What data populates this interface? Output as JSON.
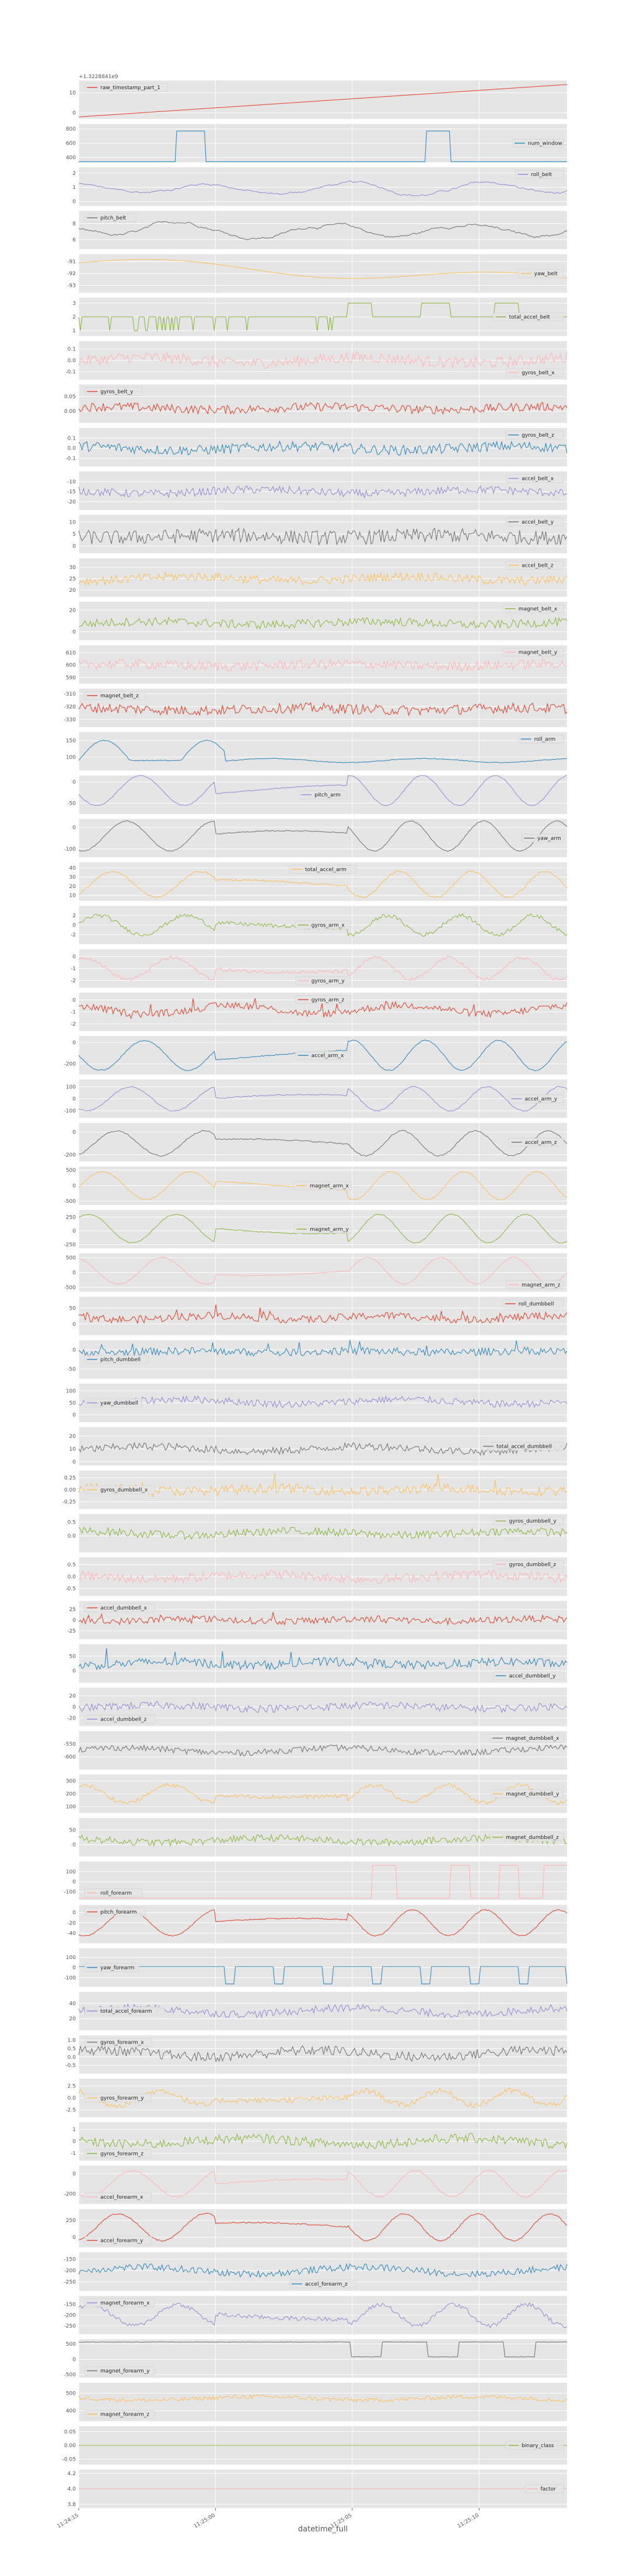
{
  "chart_data": {
    "type": "line",
    "layout": "stacked-subplots-shared-x",
    "xlabel": "datetime_full",
    "x_ticks": [
      "11:24:15",
      "11:25:00",
      "11:25:05",
      "11:25:10"
    ],
    "x_tick_positions": [
      0.0,
      0.28,
      0.56,
      0.82
    ],
    "grid": true,
    "legend_placement": "right",
    "background": "#E5E5E5",
    "colors": [
      "#E24A33",
      "#348ABD",
      "#988ED5",
      "#777777",
      "#FBC15E",
      "#8EBA42",
      "#FFB5B8"
    ],
    "subplots": [
      {
        "series": "raw_timestamp_part_1",
        "legend_pos": "top-left",
        "offset_text": "+1.3228841e9",
        "yticks": [
          "10",
          "0"
        ],
        "ylim": [
          -3,
          16
        ],
        "shape": "ramp",
        "base": -2,
        "amp": 16,
        "noise": 0.02
      },
      {
        "series": "num_window",
        "legend_pos": "right",
        "yticks": [
          "800",
          "600",
          "400"
        ],
        "ylim": [
          330,
          870
        ],
        "shape": "window",
        "base": 340,
        "amp": 430,
        "noise": 0
      },
      {
        "series": "roll_belt",
        "legend_pos": "top-right",
        "yticks": [
          "2",
          "1",
          "0"
        ],
        "ylim": [
          -0.3,
          2.4
        ],
        "shape": "smooth",
        "base": 0.9,
        "amp": 0.6,
        "noise": 0.05
      },
      {
        "series": "pitch_belt",
        "legend_pos": "top-left",
        "yticks": [
          "8",
          "6"
        ],
        "ylim": [
          4.8,
          9.6
        ],
        "shape": "smooth",
        "base": 7.2,
        "amp": 1.3,
        "noise": 0.08
      },
      {
        "series": "yaw_belt",
        "legend_pos": "right",
        "yticks": [
          "-91",
          "-92",
          "-93"
        ],
        "ylim": [
          -93.6,
          -90.4
        ],
        "shape": "decline",
        "base": -92,
        "amp": 1.0,
        "noise": 0.06
      },
      {
        "series": "total_accel_belt",
        "legend_pos": "right",
        "yticks": [
          "3",
          "2",
          "1"
        ],
        "ylim": [
          0.6,
          3.4
        ],
        "shape": "step",
        "base": 2,
        "amp": 1,
        "noise": 0
      },
      {
        "series": "gyros_belt_x",
        "legend_pos": "bottom-right",
        "yticks": [
          "0.1",
          "0.0",
          "-0.1"
        ],
        "ylim": [
          -0.17,
          0.17
        ],
        "shape": "noisy",
        "base": 0,
        "amp": 0.05,
        "noise": 0.05
      },
      {
        "series": "gyros_belt_y",
        "legend_pos": "top-left",
        "yticks": [
          "0.05",
          "0.00"
        ],
        "ylim": [
          -0.04,
          0.09
        ],
        "shape": "noisy",
        "base": 0.01,
        "amp": 0.01,
        "noise": 0.015
      },
      {
        "series": "gyros_belt_z",
        "legend_pos": "top-right",
        "yticks": [
          "0.1",
          "0.0",
          "-0.1"
        ],
        "ylim": [
          -0.18,
          0.2
        ],
        "shape": "noisy",
        "base": 0,
        "amp": 0.04,
        "noise": 0.05
      },
      {
        "series": "accel_belt_x",
        "legend_pos": "top-right",
        "yticks": [
          "-10",
          "-15",
          "-20"
        ],
        "ylim": [
          -24,
          -5
        ],
        "shape": "noisy",
        "base": -15,
        "amp": 2,
        "noise": 2
      },
      {
        "series": "accel_belt_y",
        "legend_pos": "top-right",
        "yticks": [
          "10",
          "5",
          "0"
        ],
        "ylim": [
          -3,
          13
        ],
        "shape": "noisy",
        "base": 4,
        "amp": 1,
        "noise": 3
      },
      {
        "series": "accel_belt_z",
        "legend_pos": "top-right",
        "yticks": [
          "30",
          "25",
          "20"
        ],
        "ylim": [
          17,
          34
        ],
        "shape": "noisy",
        "base": 25,
        "amp": 2,
        "noise": 2
      },
      {
        "series": "magnet_belt_x",
        "legend_pos": "top-right",
        "yticks": [
          "20",
          "0"
        ],
        "ylim": [
          -8,
          28
        ],
        "shape": "noisy",
        "base": 8,
        "amp": 3,
        "noise": 4
      },
      {
        "series": "magnet_belt_y",
        "legend_pos": "top-right",
        "yticks": [
          "610",
          "600",
          "590"
        ],
        "ylim": [
          585,
          616
        ],
        "shape": "noisy",
        "base": 600,
        "amp": 2,
        "noise": 4
      },
      {
        "series": "magnet_belt_z",
        "legend_pos": "top-left",
        "yticks": [
          "-310",
          "-320",
          "-330"
        ],
        "ylim": [
          -336,
          -306
        ],
        "shape": "noisy",
        "base": -322,
        "amp": 2,
        "noise": 4
      },
      {
        "series": "roll_arm",
        "legend_pos": "top-right",
        "yticks": [
          "150",
          "100"
        ],
        "ylim": [
          60,
          175
        ],
        "shape": "roll_arm",
        "base": 90,
        "amp": 60,
        "noise": 1
      },
      {
        "series": "pitch_arm",
        "legend_pos": "center",
        "yticks": [
          "0",
          "-50"
        ],
        "ylim": [
          -75,
          15
        ],
        "shape": "waves",
        "base": -20,
        "amp": 35,
        "noise": 1
      },
      {
        "series": "yaw_arm",
        "legend_pos": "right",
        "yticks": [
          "0",
          "-100"
        ],
        "ylim": [
          -140,
          40
        ],
        "shape": "waves",
        "base": -40,
        "amp": 70,
        "noise": 2
      },
      {
        "series": "total_accel_arm",
        "legend_pos": "top-center",
        "yticks": [
          "40",
          "30",
          "20",
          "10"
        ],
        "ylim": [
          4,
          46
        ],
        "shape": "waves",
        "base": 22,
        "amp": 14,
        "noise": 1
      },
      {
        "series": "gyros_arm_x",
        "legend_pos": "center",
        "yticks": [
          "2",
          "0",
          "-2"
        ],
        "ylim": [
          -4,
          4
        ],
        "shape": "waves",
        "base": 0,
        "amp": 2,
        "noise": 0.4
      },
      {
        "series": "gyros_arm_y",
        "legend_pos": "bottom-center",
        "yticks": [
          "0",
          "-1",
          "-2"
        ],
        "ylim": [
          -2.6,
          0.6
        ],
        "shape": "waves",
        "base": -1,
        "amp": 0.9,
        "noise": 0.15
      },
      {
        "series": "gyros_arm_z",
        "legend_pos": "top-center",
        "yticks": [
          "0",
          "-1",
          "-2"
        ],
        "ylim": [
          -2.6,
          0.6
        ],
        "shape": "spiky",
        "base": -0.8,
        "amp": 0.9,
        "noise": 0.3
      },
      {
        "series": "accel_arm_x",
        "legend_pos": "center",
        "yticks": [
          "0",
          "-200"
        ],
        "ylim": [
          -300,
          60
        ],
        "shape": "waves",
        "base": -120,
        "amp": 140,
        "noise": 5
      },
      {
        "series": "accel_arm_y",
        "legend_pos": "right",
        "yticks": [
          "100",
          "0",
          "-100"
        ],
        "ylim": [
          -160,
          160
        ],
        "shape": "waves",
        "base": 0,
        "amp": 100,
        "noise": 5
      },
      {
        "series": "accel_arm_z",
        "legend_pos": "right",
        "yticks": [
          "0",
          "-200"
        ],
        "ylim": [
          -260,
          80
        ],
        "shape": "waves",
        "base": -100,
        "amp": 110,
        "noise": 6
      },
      {
        "series": "magnet_arm_x",
        "legend_pos": "center",
        "yticks": [
          "500",
          "0",
          "-500"
        ],
        "ylim": [
          -620,
          620
        ],
        "shape": "waves",
        "base": 0,
        "amp": 450,
        "noise": 10
      },
      {
        "series": "magnet_arm_y",
        "legend_pos": "center",
        "yticks": [
          "250",
          "0",
          "-250"
        ],
        "ylim": [
          -320,
          380
        ],
        "shape": "waves",
        "base": 40,
        "amp": 260,
        "noise": 8
      },
      {
        "series": "magnet_arm_z",
        "legend_pos": "bottom-right",
        "yticks": [
          "500",
          "0",
          "-500"
        ],
        "ylim": [
          -650,
          650
        ],
        "shape": "waves",
        "base": 60,
        "amp": 450,
        "noise": 10
      },
      {
        "series": "roll_dumbbell",
        "legend_pos": "top-right",
        "yticks": [
          "50",
          "0"
        ],
        "ylim": [
          -35,
          85
        ],
        "shape": "spiky",
        "base": 20,
        "amp": 15,
        "noise": 12
      },
      {
        "series": "pitch_dumbbell",
        "legend_pos": "left",
        "yticks": [
          "0",
          "-50"
        ],
        "ylim": [
          -75,
          25
        ],
        "shape": "spiky",
        "base": -5,
        "amp": 5,
        "noise": 10
      },
      {
        "series": "yaw_dumbbell",
        "legend_pos": "left",
        "yticks": [
          "100",
          "50",
          "0"
        ],
        "ylim": [
          -30,
          130
        ],
        "shape": "noisy",
        "base": 55,
        "amp": 20,
        "noise": 15
      },
      {
        "series": "total_accel_dumbbell",
        "legend_pos": "right",
        "yticks": [
          "20",
          "10",
          "0"
        ],
        "ylim": [
          -3,
          27
        ],
        "shape": "noisy",
        "base": 10,
        "amp": 4,
        "noise": 3
      },
      {
        "series": "gyros_dumbbell_x",
        "legend_pos": "left",
        "yticks": [
          "0.25",
          "0.00",
          "-0.25"
        ],
        "ylim": [
          -0.4,
          0.4
        ],
        "shape": "spiky",
        "base": 0,
        "amp": 0.08,
        "noise": 0.1
      },
      {
        "series": "gyros_dumbbell_y",
        "legend_pos": "top-right",
        "yticks": [
          "0.5",
          "0.0"
        ],
        "ylim": [
          -0.6,
          0.8
        ],
        "shape": "noisy",
        "base": 0.1,
        "amp": 0.15,
        "noise": 0.15
      },
      {
        "series": "gyros_dumbbell_z",
        "legend_pos": "top-right",
        "yticks": [
          "0.5",
          "0.0",
          "-0.5"
        ],
        "ylim": [
          -0.8,
          0.8
        ],
        "shape": "noisy",
        "base": 0,
        "amp": 0.2,
        "noise": 0.2
      },
      {
        "series": "accel_dumbbell_x",
        "legend_pos": "top-left",
        "yticks": [
          "25",
          "0",
          "-25"
        ],
        "ylim": [
          -45,
          45
        ],
        "shape": "spiky",
        "base": 0,
        "amp": 8,
        "noise": 8
      },
      {
        "series": "accel_dumbbell_y",
        "legend_pos": "bottom-right",
        "yticks": [
          "50",
          "0"
        ],
        "ylim": [
          -40,
          90
        ],
        "shape": "spiky",
        "base": 25,
        "amp": 15,
        "noise": 15
      },
      {
        "series": "accel_dumbbell_z",
        "legend_pos": "bottom-left",
        "yticks": [
          "20",
          "0",
          "-20"
        ],
        "ylim": [
          -35,
          35
        ],
        "shape": "noisy",
        "base": 0,
        "amp": 6,
        "noise": 7
      },
      {
        "series": "magnet_dumbbell_x",
        "legend_pos": "top-right",
        "yticks": [
          "-550",
          "-600"
        ],
        "ylim": [
          -650,
          -500
        ],
        "shape": "noisy",
        "base": -575,
        "amp": 20,
        "noise": 12
      },
      {
        "series": "magnet_dumbbell_y",
        "legend_pos": "right",
        "yticks": [
          "300",
          "200",
          "100"
        ],
        "ylim": [
          50,
          350
        ],
        "shape": "waves",
        "base": 200,
        "amp": 70,
        "noise": 15
      },
      {
        "series": "magnet_dumbbell_z",
        "legend_pos": "right",
        "yticks": [
          "50",
          "0"
        ],
        "ylim": [
          -40,
          90
        ],
        "shape": "noisy",
        "base": 15,
        "amp": 15,
        "noise": 12
      },
      {
        "series": "roll_forearm",
        "legend_pos": "bottom-left",
        "yticks": [
          "100",
          "0",
          "-100"
        ],
        "ylim": [
          -180,
          200
        ],
        "shape": "roll_forearm",
        "base": 0,
        "amp": 170,
        "noise": 0
      },
      {
        "series": "pitch_forearm",
        "legend_pos": "top-left",
        "yticks": [
          "0",
          "-20",
          "-40"
        ],
        "ylim": [
          -60,
          15
        ],
        "shape": "waves",
        "base": -20,
        "amp": 25,
        "noise": 1
      },
      {
        "series": "yaw_forearm",
        "legend_pos": "left",
        "yticks": [
          "100",
          "0",
          "-100"
        ],
        "ylim": [
          -190,
          190
        ],
        "shape": "yaw_forearm",
        "base": 0,
        "amp": 170,
        "noise": 0
      },
      {
        "series": "total_accel_forearm",
        "legend_pos": "left",
        "yticks": [
          "40",
          "20"
        ],
        "ylim": [
          5,
          55
        ],
        "shape": "noisy",
        "base": 30,
        "amp": 8,
        "noise": 5
      },
      {
        "series": "gyros_forearm_x",
        "legend_pos": "top-left",
        "yticks": [
          "1.0",
          "0.5",
          "0.0",
          "-0.5"
        ],
        "ylim": [
          -1,
          1.3
        ],
        "shape": "noisy",
        "base": 0.2,
        "amp": 0.4,
        "noise": 0.3
      },
      {
        "series": "gyros_forearm_y",
        "legend_pos": "left",
        "yticks": [
          "2.5",
          "0.0",
          "-2.5"
        ],
        "ylim": [
          -4,
          4
        ],
        "shape": "waves",
        "base": 0,
        "amp": 1.5,
        "noise": 0.6
      },
      {
        "series": "gyros_forearm_z",
        "legend_pos": "bottom-left",
        "yticks": [
          "1",
          "0",
          "-1"
        ],
        "ylim": [
          -1.6,
          1.6
        ],
        "shape": "noisy",
        "base": 0,
        "amp": 0.5,
        "noise": 0.4
      },
      {
        "series": "accel_forearm_x",
        "legend_pos": "bottom-left",
        "yticks": [
          "0",
          "-200"
        ],
        "ylim": [
          -300,
          80
        ],
        "shape": "waves",
        "base": -100,
        "amp": 130,
        "noise": 8
      },
      {
        "series": "accel_forearm_y",
        "legend_pos": "bottom-left",
        "yticks": [
          "250",
          "0"
        ],
        "ylim": [
          -150,
          420
        ],
        "shape": "waves",
        "base": 150,
        "amp": 200,
        "noise": 10
      },
      {
        "series": "accel_forearm_z",
        "legend_pos": "bottom-center",
        "yticks": [
          "-150",
          "-200",
          "-250"
        ],
        "ylim": [
          -290,
          -120
        ],
        "shape": "noisy",
        "base": -200,
        "amp": 30,
        "noise": 15
      },
      {
        "series": "magnet_forearm_x",
        "legend_pos": "top-left",
        "yticks": [
          "-150",
          "-200",
          "-250"
        ],
        "ylim": [
          -290,
          -110
        ],
        "shape": "waves",
        "base": -200,
        "amp": 50,
        "noise": 10
      },
      {
        "series": "magnet_forearm_y",
        "legend_pos": "bottom-left",
        "yticks": [
          "500",
          "0",
          "-500"
        ],
        "ylim": [
          -600,
          650
        ],
        "shape": "magnet_forearm_y",
        "base": 200,
        "amp": 400,
        "noise": 8
      },
      {
        "series": "magnet_forearm_z",
        "legend_pos": "bottom-left",
        "yticks": [
          "500",
          "400"
        ],
        "ylim": [
          340,
          560
        ],
        "shape": "noisy",
        "base": 470,
        "amp": 20,
        "noise": 12
      },
      {
        "series": "binary_class",
        "legend_pos": "right",
        "yticks": [
          "0.05",
          "0.00",
          "-0.05"
        ],
        "ylim": [
          -0.07,
          0.07
        ],
        "shape": "flat",
        "base": 0,
        "amp": 0,
        "noise": 0
      },
      {
        "series": "factor",
        "legend_pos": "right",
        "yticks": [
          "4.2",
          "4.0",
          "3.8"
        ],
        "ylim": [
          3.75,
          4.25
        ],
        "shape": "flat",
        "base": 4,
        "amp": 0,
        "noise": 0
      }
    ]
  }
}
